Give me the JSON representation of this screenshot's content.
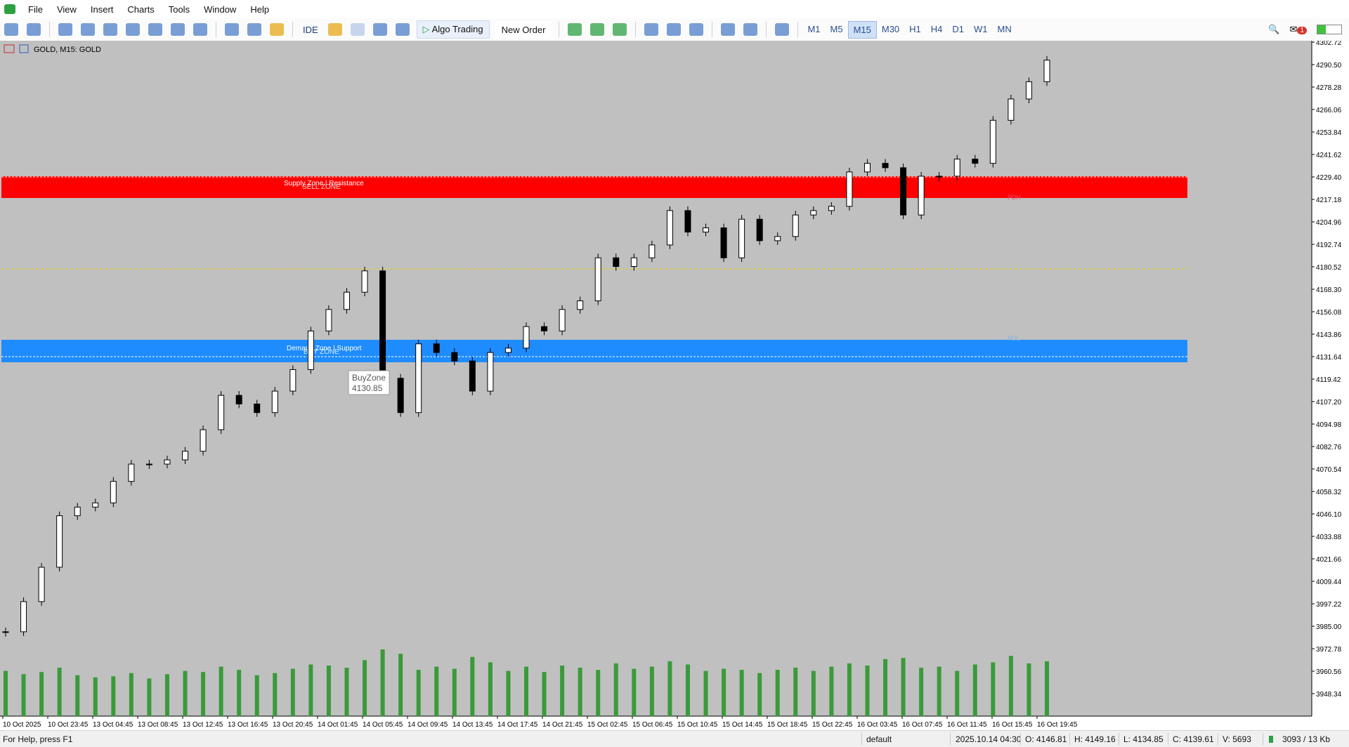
{
  "menu": [
    "File",
    "View",
    "Insert",
    "Charts",
    "Tools",
    "Window",
    "Help"
  ],
  "toolbar": {
    "ide": "IDE",
    "algo_trading": "Algo Trading",
    "new_order": "New Order",
    "timeframes": [
      "M1",
      "M5",
      "M15",
      "M30",
      "H1",
      "H4",
      "D1",
      "W1",
      "MN"
    ],
    "notification_count": "1"
  },
  "chart": {
    "header": "GOLD, M15:  GOLD",
    "price_ticks": [
      "4302.72",
      "4290.50",
      "4278.28",
      "4266.06",
      "4253.84",
      "4241.62",
      "4229.40",
      "4217.18",
      "4204.96",
      "4192.74",
      "4180.52",
      "4168.30",
      "4156.08",
      "4143.86",
      "4131.64",
      "4119.42",
      "4107.20",
      "4094.98",
      "4082.76",
      "4070.54",
      "4058.32",
      "4046.10",
      "4033.88",
      "4021.66",
      "4009.44",
      "3997.22",
      "3985.00",
      "3972.78",
      "3960.56",
      "3948.34"
    ],
    "time_labels": [
      "10 Oct 2025",
      "10 Oct 23:45",
      "13 Oct 04:45",
      "13 Oct 08:45",
      "13 Oct 12:45",
      "13 Oct 16:45",
      "13 Oct 20:45",
      "14 Oct 01:45",
      "14 Oct 05:45",
      "14 Oct 09:45",
      "14 Oct 13:45",
      "14 Oct 17:45",
      "14 Oct 21:45",
      "15 Oct 02:45",
      "15 Oct 06:45",
      "15 Oct 10:45",
      "15 Oct 14:45",
      "15 Oct 18:45",
      "15 Oct 22:45",
      "16 Oct 03:45",
      "16 Oct 07:45",
      "16 Oct 11:45",
      "16 Oct 15:45",
      "16 Oct 19:45"
    ],
    "close": [
      3982.0,
      3998.4,
      4017.1,
      4045.1,
      4049.8,
      4052.1,
      4063.8,
      4073.2,
      4073.2,
      4075.5,
      4080.2,
      4091.9,
      4110.6,
      4105.9,
      4101.2,
      4112.9,
      4124.6,
      4145.6,
      4157.3,
      4166.7,
      4178.3,
      4119.9,
      4101.2,
      4138.6,
      4133.9,
      4129.3,
      4112.9,
      4133.9,
      4136.3,
      4148.0,
      4145.6,
      4157.3,
      4162.0,
      4185.4,
      4180.7,
      4185.4,
      4192.4,
      4211.1,
      4199.4,
      4201.7,
      4185.4,
      4206.4,
      4194.7,
      4197.0,
      4208.7,
      4211.1,
      4213.4,
      4232.1,
      4236.8,
      4234.4,
      4208.7,
      4229.8,
      4229.8,
      4239.1,
      4236.8,
      4260.2,
      4271.8,
      4281.2,
      4292.9
    ],
    "volume": [
      4200,
      3900,
      4100,
      4500,
      3800,
      3600,
      3700,
      4000,
      3500,
      3900,
      4200,
      4100,
      4600,
      4300,
      3800,
      4000,
      4400,
      4800,
      4700,
      4500,
      5200,
      6200,
      5800,
      4300,
      4600,
      4400,
      5500,
      5000,
      4200,
      4600,
      4100,
      4700,
      4500,
      4300,
      4900,
      4400,
      4600,
      5100,
      4800,
      4200,
      4400,
      4300,
      4000,
      4300,
      4500,
      4200,
      4600,
      4900,
      4700,
      5300,
      5400,
      4500,
      4600,
      4200,
      4800,
      5000,
      5600,
      4900,
      5100
    ],
    "supply_zone_label": "Supply Zone | Resistance",
    "sell_zone_label": "SELL ZONE",
    "demand_zone_label": "Demand Zone | Support",
    "buy_zone_label": "BUY ZONE",
    "pdh_label": "PDH",
    "pdl_label": "PDL",
    "tooltip": {
      "title": "BuyZone",
      "price": "4130.85"
    }
  },
  "status_bar": {
    "help": "For Help, press F1",
    "profile": "default",
    "time": "2025.10.14 04:30",
    "open": "O: 4146.81",
    "high": "H: 4149.16",
    "low": "L: 4134.85",
    "close": "C: 4139.61",
    "volume": "V: 5693",
    "traffic": "3093 / 13 Kb"
  }
}
